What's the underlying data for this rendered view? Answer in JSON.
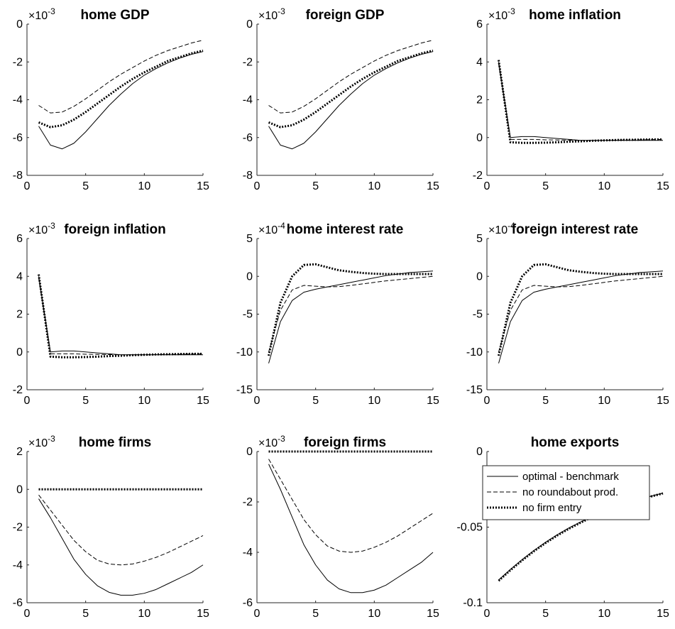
{
  "chart_data": [
    {
      "type": "line",
      "title": "home GDP",
      "exponent_base": "×10",
      "exponent_power": "-3",
      "x": [
        1,
        2,
        3,
        4,
        5,
        6,
        7,
        8,
        9,
        10,
        11,
        12,
        13,
        14,
        15
      ],
      "xlim": [
        0,
        15
      ],
      "ylim": [
        -8,
        0
      ],
      "xticks": [
        0,
        5,
        10,
        15
      ],
      "yticks": [
        -8,
        -6,
        -4,
        -2,
        0
      ],
      "series": [
        {
          "name": "optimal - benchmark",
          "values": [
            -5.4,
            -6.4,
            -6.6,
            -6.3,
            -5.7,
            -5.0,
            -4.3,
            -3.7,
            -3.15,
            -2.7,
            -2.35,
            -2.05,
            -1.8,
            -1.6,
            -1.45
          ]
        },
        {
          "name": "no roundabout prod.",
          "values": [
            -4.3,
            -4.7,
            -4.65,
            -4.35,
            -3.95,
            -3.5,
            -3.05,
            -2.65,
            -2.3,
            -1.95,
            -1.65,
            -1.4,
            -1.2,
            -1.0,
            -0.85
          ]
        },
        {
          "name": "no firm entry",
          "values": [
            -5.2,
            -5.45,
            -5.35,
            -5.05,
            -4.65,
            -4.2,
            -3.75,
            -3.3,
            -2.9,
            -2.55,
            -2.25,
            -1.95,
            -1.75,
            -1.55,
            -1.4
          ]
        }
      ]
    },
    {
      "type": "line",
      "title": "foreign GDP",
      "exponent_base": "×10",
      "exponent_power": "-3",
      "x": [
        1,
        2,
        3,
        4,
        5,
        6,
        7,
        8,
        9,
        10,
        11,
        12,
        13,
        14,
        15
      ],
      "xlim": [
        0,
        15
      ],
      "ylim": [
        -8,
        0
      ],
      "xticks": [
        0,
        5,
        10,
        15
      ],
      "yticks": [
        -8,
        -6,
        -4,
        -2,
        0
      ],
      "series": [
        {
          "name": "optimal - benchmark",
          "values": [
            -5.4,
            -6.4,
            -6.6,
            -6.3,
            -5.7,
            -5.0,
            -4.3,
            -3.7,
            -3.15,
            -2.7,
            -2.35,
            -2.05,
            -1.8,
            -1.6,
            -1.45
          ]
        },
        {
          "name": "no roundabout prod.",
          "values": [
            -4.3,
            -4.7,
            -4.65,
            -4.35,
            -3.95,
            -3.5,
            -3.05,
            -2.65,
            -2.3,
            -1.95,
            -1.65,
            -1.4,
            -1.2,
            -1.0,
            -0.85
          ]
        },
        {
          "name": "no firm entry",
          "values": [
            -5.2,
            -5.45,
            -5.35,
            -5.05,
            -4.65,
            -4.2,
            -3.75,
            -3.3,
            -2.9,
            -2.55,
            -2.25,
            -1.95,
            -1.75,
            -1.55,
            -1.4
          ]
        }
      ]
    },
    {
      "type": "line",
      "title": "home inflation",
      "exponent_base": "×10",
      "exponent_power": "-3",
      "x": [
        1,
        2,
        3,
        4,
        5,
        6,
        7,
        8,
        9,
        10,
        11,
        12,
        13,
        14,
        15
      ],
      "xlim": [
        0,
        15
      ],
      "ylim": [
        -2,
        6
      ],
      "xticks": [
        0,
        5,
        10,
        15
      ],
      "yticks": [
        -2,
        0,
        2,
        4,
        6
      ],
      "series": [
        {
          "name": "optimal - benchmark",
          "values": [
            4.0,
            0.0,
            0.05,
            0.05,
            0.0,
            -0.05,
            -0.1,
            -0.15,
            -0.15,
            -0.15,
            -0.15,
            -0.15,
            -0.15,
            -0.15,
            -0.15
          ]
        },
        {
          "name": "no roundabout prod.",
          "values": [
            3.9,
            -0.1,
            -0.1,
            -0.1,
            -0.12,
            -0.13,
            -0.14,
            -0.15,
            -0.15,
            -0.15,
            -0.14,
            -0.13,
            -0.12,
            -0.11,
            -0.1
          ]
        },
        {
          "name": "no firm entry",
          "values": [
            4.1,
            -0.25,
            -0.28,
            -0.28,
            -0.27,
            -0.25,
            -0.22,
            -0.2,
            -0.17,
            -0.15,
            -0.13,
            -0.12,
            -0.11,
            -0.1,
            -0.1
          ]
        }
      ]
    },
    {
      "type": "line",
      "title": "foreign inflation",
      "exponent_base": "×10",
      "exponent_power": "-3",
      "x": [
        1,
        2,
        3,
        4,
        5,
        6,
        7,
        8,
        9,
        10,
        11,
        12,
        13,
        14,
        15
      ],
      "xlim": [
        0,
        15
      ],
      "ylim": [
        -2,
        6
      ],
      "xticks": [
        0,
        5,
        10,
        15
      ],
      "yticks": [
        -2,
        0,
        2,
        4,
        6
      ],
      "series": [
        {
          "name": "optimal - benchmark",
          "values": [
            4.0,
            0.0,
            0.05,
            0.05,
            0.0,
            -0.05,
            -0.1,
            -0.15,
            -0.15,
            -0.15,
            -0.15,
            -0.15,
            -0.15,
            -0.15,
            -0.15
          ]
        },
        {
          "name": "no roundabout prod.",
          "values": [
            3.9,
            -0.1,
            -0.1,
            -0.1,
            -0.12,
            -0.13,
            -0.14,
            -0.15,
            -0.15,
            -0.15,
            -0.14,
            -0.13,
            -0.12,
            -0.11,
            -0.1
          ]
        },
        {
          "name": "no firm entry",
          "values": [
            4.1,
            -0.25,
            -0.28,
            -0.28,
            -0.27,
            -0.25,
            -0.22,
            -0.2,
            -0.17,
            -0.15,
            -0.13,
            -0.12,
            -0.11,
            -0.1,
            -0.1
          ]
        }
      ]
    },
    {
      "type": "line",
      "title": "home interest rate",
      "exponent_base": "×10",
      "exponent_power": "-4",
      "x": [
        1,
        2,
        3,
        4,
        5,
        6,
        7,
        8,
        9,
        10,
        11,
        12,
        13,
        14,
        15
      ],
      "xlim": [
        0,
        15
      ],
      "ylim": [
        -15,
        5
      ],
      "xticks": [
        0,
        5,
        10,
        15
      ],
      "yticks": [
        -15,
        -10,
        -5,
        0,
        5
      ],
      "series": [
        {
          "name": "optimal - benchmark",
          "values": [
            -11.5,
            -6.0,
            -3.2,
            -2.1,
            -1.7,
            -1.4,
            -1.1,
            -0.8,
            -0.5,
            -0.2,
            0.1,
            0.3,
            0.5,
            0.6,
            0.7
          ]
        },
        {
          "name": "no roundabout prod.",
          "values": [
            -10.0,
            -4.5,
            -1.8,
            -1.2,
            -1.3,
            -1.4,
            -1.35,
            -1.2,
            -1.0,
            -0.8,
            -0.6,
            -0.45,
            -0.3,
            -0.15,
            0.0
          ]
        },
        {
          "name": "no firm entry",
          "values": [
            -10.5,
            -3.5,
            0.0,
            1.5,
            1.6,
            1.2,
            0.8,
            0.6,
            0.45,
            0.35,
            0.3,
            0.3,
            0.3,
            0.3,
            0.3
          ]
        }
      ]
    },
    {
      "type": "line",
      "title": "foreign interest rate",
      "exponent_base": "×10",
      "exponent_power": "-4",
      "x": [
        1,
        2,
        3,
        4,
        5,
        6,
        7,
        8,
        9,
        10,
        11,
        12,
        13,
        14,
        15
      ],
      "xlim": [
        0,
        15
      ],
      "ylim": [
        -15,
        5
      ],
      "xticks": [
        0,
        5,
        10,
        15
      ],
      "yticks": [
        -15,
        -10,
        -5,
        0,
        5
      ],
      "series": [
        {
          "name": "optimal - benchmark",
          "values": [
            -11.5,
            -6.0,
            -3.2,
            -2.1,
            -1.7,
            -1.4,
            -1.1,
            -0.8,
            -0.5,
            -0.2,
            0.1,
            0.3,
            0.5,
            0.6,
            0.7
          ]
        },
        {
          "name": "no roundabout prod.",
          "values": [
            -10.0,
            -4.5,
            -1.8,
            -1.2,
            -1.3,
            -1.4,
            -1.35,
            -1.2,
            -1.0,
            -0.8,
            -0.6,
            -0.45,
            -0.3,
            -0.15,
            0.0
          ]
        },
        {
          "name": "no firm entry",
          "values": [
            -10.5,
            -3.5,
            0.0,
            1.5,
            1.6,
            1.2,
            0.8,
            0.6,
            0.45,
            0.35,
            0.3,
            0.3,
            0.3,
            0.3,
            0.3
          ]
        }
      ]
    },
    {
      "type": "line",
      "title": "home firms",
      "exponent_base": "×10",
      "exponent_power": "-3",
      "x": [
        1,
        2,
        3,
        4,
        5,
        6,
        7,
        8,
        9,
        10,
        11,
        12,
        13,
        14,
        15
      ],
      "xlim": [
        0,
        15
      ],
      "ylim": [
        -6,
        2
      ],
      "xticks": [
        0,
        5,
        10,
        15
      ],
      "yticks": [
        -6,
        -4,
        -2,
        0,
        2
      ],
      "series": [
        {
          "name": "optimal - benchmark",
          "values": [
            -0.5,
            -1.5,
            -2.6,
            -3.7,
            -4.5,
            -5.1,
            -5.45,
            -5.6,
            -5.6,
            -5.5,
            -5.3,
            -5.0,
            -4.7,
            -4.4,
            -4.0
          ]
        },
        {
          "name": "no roundabout prod.",
          "values": [
            -0.3,
            -1.1,
            -1.9,
            -2.7,
            -3.3,
            -3.75,
            -3.95,
            -4.0,
            -3.95,
            -3.8,
            -3.6,
            -3.35,
            -3.05,
            -2.75,
            -2.45
          ]
        },
        {
          "name": "no firm entry",
          "values": [
            0,
            0,
            0,
            0,
            0,
            0,
            0,
            0,
            0,
            0,
            0,
            0,
            0,
            0,
            0
          ]
        }
      ]
    },
    {
      "type": "line",
      "title": "foreign firms",
      "exponent_base": "×10",
      "exponent_power": "-3",
      "x": [
        1,
        2,
        3,
        4,
        5,
        6,
        7,
        8,
        9,
        10,
        11,
        12,
        13,
        14,
        15
      ],
      "xlim": [
        0,
        15
      ],
      "ylim": [
        -6,
        0
      ],
      "xticks": [
        0,
        5,
        10,
        15
      ],
      "yticks": [
        -6,
        -4,
        -2,
        0
      ],
      "series": [
        {
          "name": "optimal - benchmark",
          "values": [
            -0.5,
            -1.5,
            -2.6,
            -3.7,
            -4.5,
            -5.1,
            -5.45,
            -5.6,
            -5.6,
            -5.5,
            -5.3,
            -5.0,
            -4.7,
            -4.4,
            -4.0
          ]
        },
        {
          "name": "no roundabout prod.",
          "values": [
            -0.3,
            -1.1,
            -1.9,
            -2.7,
            -3.3,
            -3.75,
            -3.95,
            -4.0,
            -3.95,
            -3.8,
            -3.6,
            -3.35,
            -3.05,
            -2.75,
            -2.45
          ]
        },
        {
          "name": "no firm entry",
          "values": [
            0,
            0,
            0,
            0,
            0,
            0,
            0,
            0,
            0,
            0,
            0,
            0,
            0,
            0,
            0
          ]
        }
      ]
    },
    {
      "type": "line",
      "title": "home exports",
      "exponent_base": "",
      "exponent_power": "",
      "x": [
        1,
        2,
        3,
        4,
        5,
        6,
        7,
        8,
        9,
        10,
        11,
        12,
        13,
        14,
        15
      ],
      "xlim": [
        0,
        15
      ],
      "ylim": [
        -0.1,
        0
      ],
      "xticks": [
        0,
        5,
        10,
        15
      ],
      "yticks": [
        -0.1,
        -0.05,
        0
      ],
      "series": [
        {
          "name": "optimal - benchmark",
          "values": [
            -0.085,
            -0.078,
            -0.0715,
            -0.0655,
            -0.06,
            -0.055,
            -0.0505,
            -0.0465,
            -0.043,
            -0.0395,
            -0.0365,
            -0.034,
            -0.0315,
            -0.0295,
            -0.0275
          ]
        },
        {
          "name": "no roundabout prod.",
          "values": [
            -0.085,
            -0.078,
            -0.0715,
            -0.0655,
            -0.06,
            -0.055,
            -0.0505,
            -0.0465,
            -0.043,
            -0.0395,
            -0.0365,
            -0.034,
            -0.0315,
            -0.0295,
            -0.0275
          ]
        },
        {
          "name": "no firm entry",
          "values": [
            -0.0855,
            -0.0785,
            -0.072,
            -0.066,
            -0.0605,
            -0.0555,
            -0.051,
            -0.047,
            -0.0432,
            -0.0398,
            -0.0368,
            -0.0342,
            -0.0318,
            -0.0297,
            -0.0277
          ]
        }
      ],
      "legend": {
        "placement": "top-right",
        "entries": [
          "optimal - benchmark",
          "no roundabout prod.",
          "no firm entry"
        ]
      }
    }
  ]
}
